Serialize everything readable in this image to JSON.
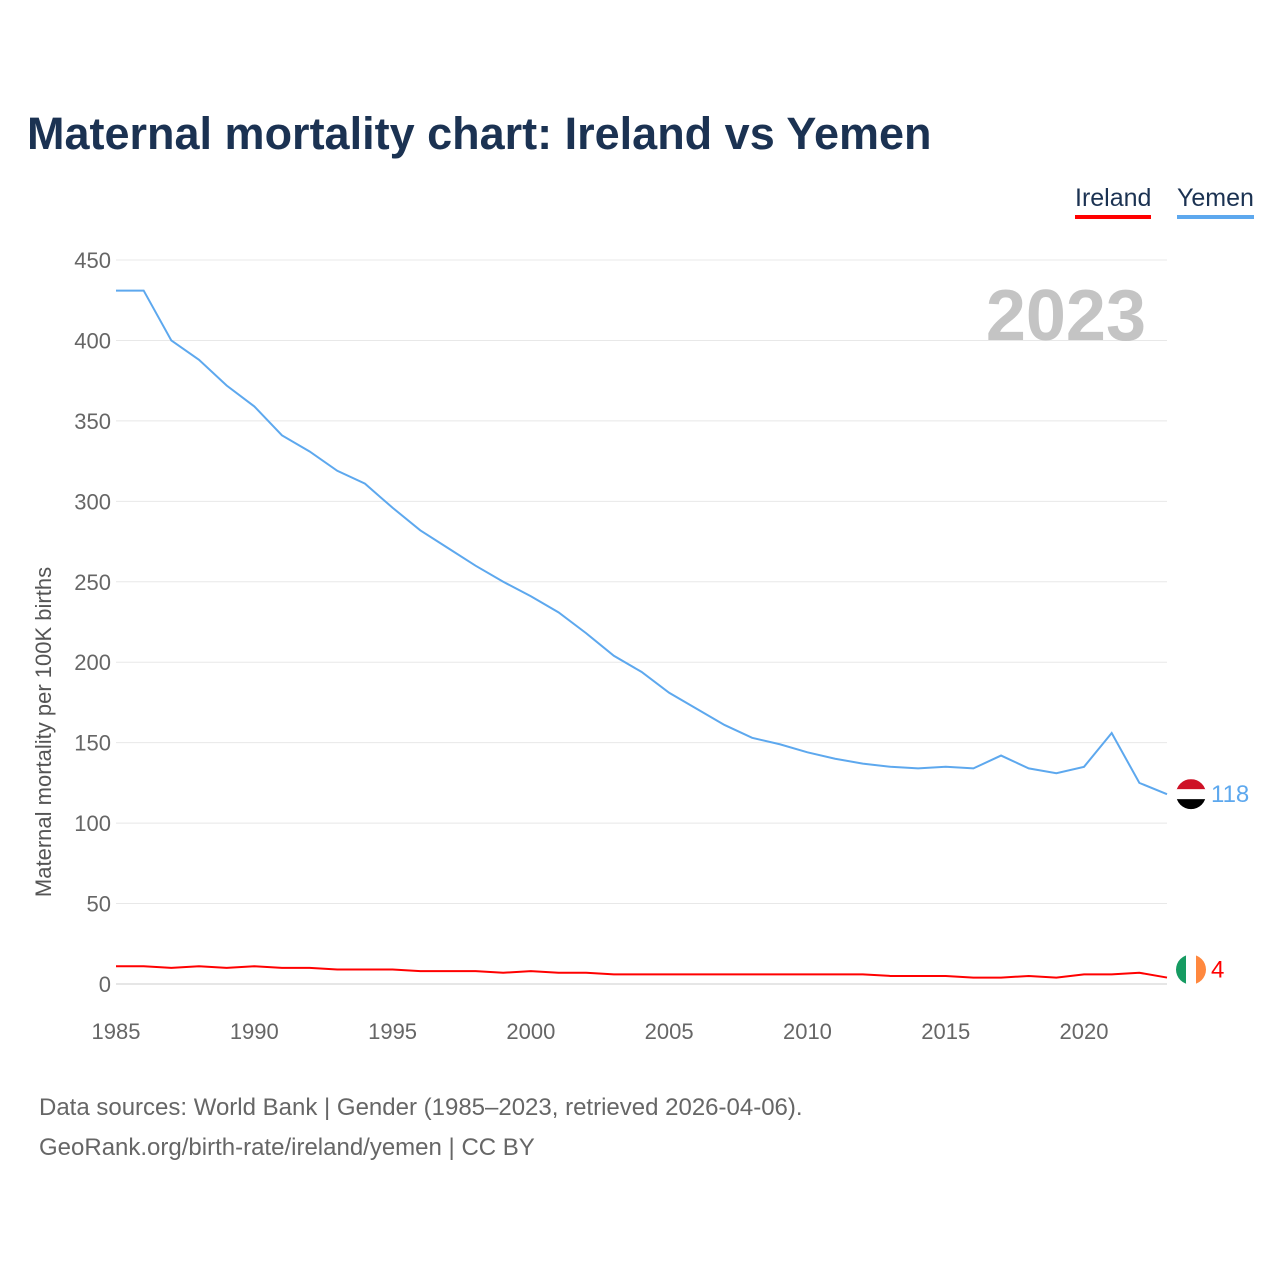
{
  "chart_data": {
    "type": "line",
    "title": "Maternal mortality chart: Ireland vs Yemen",
    "ylabel": "Maternal mortality per 100K births",
    "xlabel": "",
    "ylim": [
      0,
      450
    ],
    "xlim": [
      1985,
      2023
    ],
    "yticks": [
      0,
      50,
      100,
      150,
      200,
      250,
      300,
      350,
      400,
      450
    ],
    "xticks": [
      1985,
      1990,
      1995,
      2000,
      2005,
      2010,
      2015,
      2020
    ],
    "grid": true,
    "legend_position": "top-right",
    "year_label": "2023",
    "x": [
      1985,
      1986,
      1987,
      1988,
      1989,
      1990,
      1991,
      1992,
      1993,
      1994,
      1995,
      1996,
      1997,
      1998,
      1999,
      2000,
      2001,
      2002,
      2003,
      2004,
      2005,
      2006,
      2007,
      2008,
      2009,
      2010,
      2011,
      2012,
      2013,
      2014,
      2015,
      2016,
      2017,
      2018,
      2019,
      2020,
      2021,
      2022,
      2023
    ],
    "series": [
      {
        "name": "Ireland",
        "color": "#ff0000",
        "end_label": "4",
        "values": [
          11,
          11,
          10,
          11,
          10,
          11,
          10,
          10,
          9,
          9,
          9,
          8,
          8,
          8,
          7,
          8,
          7,
          7,
          6,
          6,
          6,
          6,
          6,
          6,
          6,
          6,
          6,
          6,
          5,
          5,
          5,
          4,
          4,
          5,
          4,
          6,
          6,
          7,
          4
        ]
      },
      {
        "name": "Yemen",
        "color": "#5da8ee",
        "end_label": "118",
        "values": [
          431,
          431,
          400,
          388,
          372,
          359,
          341,
          331,
          319,
          311,
          296,
          282,
          271,
          260,
          250,
          241,
          231,
          218,
          204,
          194,
          181,
          171,
          161,
          153,
          149,
          144,
          140,
          137,
          135,
          134,
          135,
          134,
          142,
          134,
          131,
          135,
          156,
          125,
          118
        ]
      }
    ]
  },
  "footer": {
    "line1": "Data sources: World Bank | Gender (1985–2023, retrieved 2026-04-06).",
    "line2": "GeoRank.org/birth-rate/ireland/yemen | CC BY"
  }
}
